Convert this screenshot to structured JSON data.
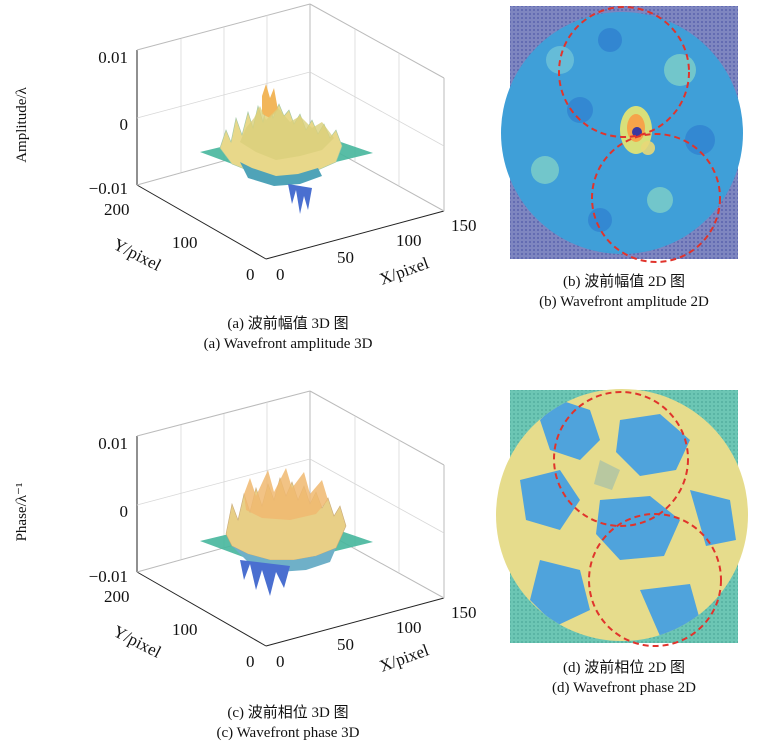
{
  "colors": {
    "surface_peak": "#f2b65a",
    "surface_mid": "#e8d88a",
    "surface_base": "#46b69c",
    "surface_low": "#4a6fd0",
    "map_background": "#7e86c0",
    "map_field": "#3f9fd8",
    "phase_background": "#6cc6b4",
    "phase_yellow": "#e6dc8c",
    "phase_blue": "#4fa3dc",
    "circle_dash": "#e0342c"
  },
  "chart_data": [
    {
      "id": "a",
      "type": "surface3d",
      "caption_cn": "(a) 波前幅值 3D 图",
      "caption_en": "(a) Wavefront amplitude 3D",
      "zlabel": "Amplitude/λ",
      "xlabel": "X/pixel",
      "ylabel": "Y/pixel",
      "z_ticks": [
        "0.01",
        "0",
        "−0.01"
      ],
      "x_ticks": [
        "0",
        "50",
        "100",
        "150"
      ],
      "y_ticks": [
        "0",
        "100",
        "200"
      ],
      "zlim": [
        -0.01,
        0.01
      ],
      "xlim": [
        0,
        150
      ],
      "ylim": [
        0,
        200
      ]
    },
    {
      "id": "b",
      "type": "heatmap",
      "caption_cn": "(b) 波前幅值 2D 图",
      "caption_en": "(b) Wavefront amplitude 2D",
      "overlay": "two dashed red circles (upper and lower sub-apertures)"
    },
    {
      "id": "c",
      "type": "surface3d",
      "caption_cn": "(c) 波前相位 3D 图",
      "caption_en": "(c) Wavefront phase 3D",
      "zlabel": "Phase/λ⁻¹",
      "xlabel": "X/pixel",
      "ylabel": "Y/pixel",
      "z_ticks": [
        "0.01",
        "0",
        "−0.01"
      ],
      "x_ticks": [
        "0",
        "50",
        "100",
        "150"
      ],
      "y_ticks": [
        "0",
        "100",
        "200"
      ],
      "zlim": [
        -0.01,
        0.01
      ],
      "xlim": [
        0,
        150
      ],
      "ylim": [
        0,
        200
      ]
    },
    {
      "id": "d",
      "type": "heatmap",
      "caption_cn": "(d) 波前相位 2D 图",
      "caption_en": "(d) Wavefront phase 2D",
      "overlay": "two dashed red circles (upper and lower sub-apertures)"
    }
  ]
}
